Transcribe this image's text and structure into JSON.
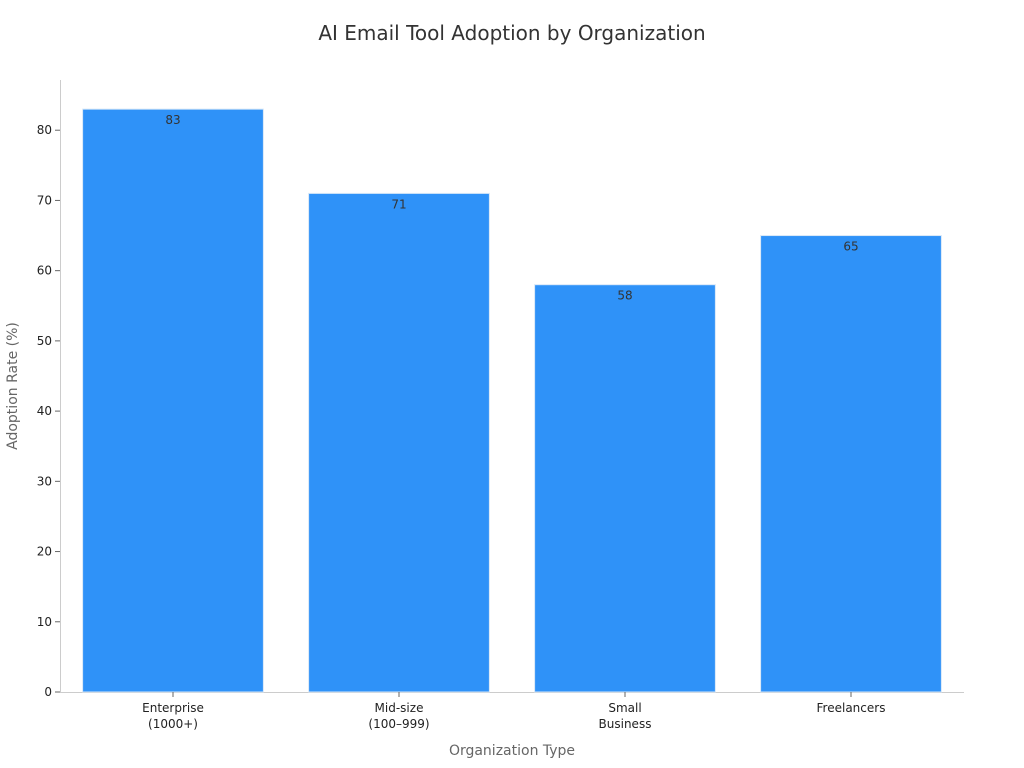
{
  "chart_data": {
    "type": "bar",
    "title": "AI Email Tool Adoption by Organization",
    "xlabel": "Organization Type",
    "ylabel": "Adoption Rate (%)",
    "categories": [
      [
        "Enterprise",
        "(1000+)"
      ],
      [
        "Mid-size",
        "(100–999)"
      ],
      [
        "Small",
        "Business"
      ],
      [
        "Freelancers"
      ]
    ],
    "values": [
      83,
      71,
      58,
      65
    ],
    "data_labels": [
      "83",
      "71",
      "58",
      "65"
    ],
    "yticks": [
      0,
      10,
      20,
      30,
      40,
      50,
      60,
      70,
      80
    ],
    "ylim": [
      0,
      87.15
    ],
    "grid": false,
    "legend": "none",
    "colors": {
      "bar": "#2f92f8",
      "bar_edge": "#d8e8f8"
    }
  }
}
